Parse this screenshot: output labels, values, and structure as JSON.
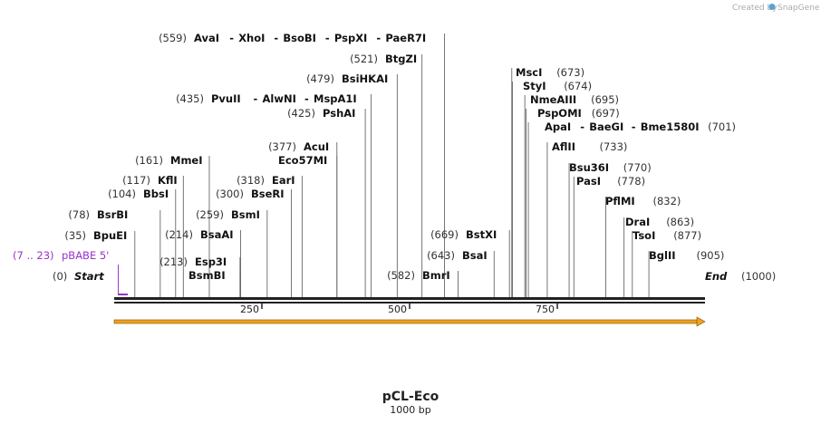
{
  "credit": "Created by",
  "brand": "SnapGene",
  "map": {
    "name": "pCL-Eco",
    "length_label": "1000 bp",
    "length_bp": 1000,
    "ticks": [
      {
        "bp": 250,
        "label": "250"
      },
      {
        "bp": 500,
        "label": "500"
      },
      {
        "bp": 750,
        "label": "750"
      }
    ]
  },
  "start_label": {
    "pos": "(0)",
    "name": "Start"
  },
  "end_label": {
    "name": "End",
    "pos": "(1000)"
  },
  "feature": {
    "range": "(7 .. 23)",
    "name": "pBABE 5'",
    "start": 7,
    "end": 23,
    "color": "#9b30c9"
  },
  "orf_color": "#f0a020",
  "sites": [
    {
      "id": "bpuei",
      "bp": 35,
      "pos": "(35)",
      "names": [
        "BpuEI"
      ],
      "side": "before"
    },
    {
      "id": "bsrbi",
      "bp": 78,
      "pos": "(78)",
      "names": [
        "BsrBI"
      ],
      "side": "before"
    },
    {
      "id": "bbsi",
      "bp": 104,
      "pos": "(104)",
      "names": [
        "BbsI"
      ],
      "side": "before"
    },
    {
      "id": "kfli",
      "bp": 117,
      "pos": "(117)",
      "names": [
        "KflI"
      ],
      "side": "before"
    },
    {
      "id": "mmei",
      "bp": 161,
      "pos": "(161)",
      "names": [
        "MmeI"
      ],
      "side": "before"
    },
    {
      "id": "bsmbi",
      "bp": 213,
      "pos": "",
      "names": [
        "BsmBI"
      ],
      "side": "before"
    },
    {
      "id": "esp3i",
      "bp": 213,
      "pos": "(213)",
      "names": [
        "Esp3I"
      ],
      "side": "before"
    },
    {
      "id": "bsaai",
      "bp": 214,
      "pos": "(214)",
      "names": [
        "BsaAI"
      ],
      "side": "before"
    },
    {
      "id": "bsmi",
      "bp": 259,
      "pos": "(259)",
      "names": [
        "BsmI"
      ],
      "side": "before"
    },
    {
      "id": "bseri",
      "bp": 300,
      "pos": "(300)",
      "names": [
        "BseRI"
      ],
      "side": "before"
    },
    {
      "id": "eari",
      "bp": 318,
      "pos": "(318)",
      "names": [
        "EarI"
      ],
      "side": "before"
    },
    {
      "id": "eco57mi",
      "bp": 377,
      "pos": "",
      "names": [
        "Eco57MI"
      ],
      "side": "before"
    },
    {
      "id": "acui",
      "bp": 377,
      "pos": "(377)",
      "names": [
        "AcuI"
      ],
      "side": "before"
    },
    {
      "id": "pshai",
      "bp": 425,
      "pos": "(425)",
      "names": [
        "PshAI"
      ],
      "side": "before"
    },
    {
      "id": "pvuii",
      "bp": 435,
      "pos": "(435)",
      "names": [
        "PvuII",
        "AlwNI",
        "MspA1I"
      ],
      "side": "before"
    },
    {
      "id": "bsihkai",
      "bp": 479,
      "pos": "(479)",
      "names": [
        "BsiHKAI"
      ],
      "side": "before"
    },
    {
      "id": "btgzi",
      "bp": 521,
      "pos": "(521)",
      "names": [
        "BtgZI"
      ],
      "side": "before"
    },
    {
      "id": "avai",
      "bp": 559,
      "pos": "(559)",
      "names": [
        "AvaI",
        "XhoI",
        "BsoBI",
        "PspXI",
        "PaeR7I"
      ],
      "side": "before"
    },
    {
      "id": "bmri",
      "bp": 582,
      "pos": "(582)",
      "names": [
        "BmrI"
      ],
      "side": "before"
    },
    {
      "id": "bsai",
      "bp": 643,
      "pos": "(643)",
      "names": [
        "BsaI"
      ],
      "side": "before"
    },
    {
      "id": "bstxi",
      "bp": 669,
      "pos": "(669)",
      "names": [
        "BstXI"
      ],
      "side": "before"
    },
    {
      "id": "msci",
      "bp": 673,
      "pos": "(673)",
      "names": [
        "MscI"
      ],
      "side": "after"
    },
    {
      "id": "styi",
      "bp": 674,
      "pos": "(674)",
      "names": [
        "StyI"
      ],
      "side": "after"
    },
    {
      "id": "nmeaiii",
      "bp": 695,
      "pos": "(695)",
      "names": [
        "NmeAIII"
      ],
      "side": "after"
    },
    {
      "id": "pspomi",
      "bp": 697,
      "pos": "(697)",
      "names": [
        "PspOMI"
      ],
      "side": "after"
    },
    {
      "id": "apai",
      "bp": 701,
      "pos": "(701)",
      "names": [
        "ApaI",
        "BaeGI",
        "Bme1580I"
      ],
      "side": "after"
    },
    {
      "id": "afliii",
      "bp": 733,
      "pos": "(733)",
      "names": [
        "AflII"
      ],
      "side": "after"
    },
    {
      "id": "bsu36i",
      "bp": 770,
      "pos": "(770)",
      "names": [
        "Bsu36I"
      ],
      "side": "after"
    },
    {
      "id": "pasi",
      "bp": 778,
      "pos": "(778)",
      "names": [
        "PasI"
      ],
      "side": "after"
    },
    {
      "id": "pflmi",
      "bp": 832,
      "pos": "(832)",
      "names": [
        "PflMI"
      ],
      "side": "after"
    },
    {
      "id": "drai",
      "bp": 863,
      "pos": "(863)",
      "names": [
        "DraI"
      ],
      "side": "after"
    },
    {
      "id": "tsoi",
      "bp": 877,
      "pos": "(877)",
      "names": [
        "TsoI"
      ],
      "side": "after"
    },
    {
      "id": "bglii",
      "bp": 905,
      "pos": "(905)",
      "names": [
        "BglII"
      ],
      "side": "after"
    }
  ]
}
